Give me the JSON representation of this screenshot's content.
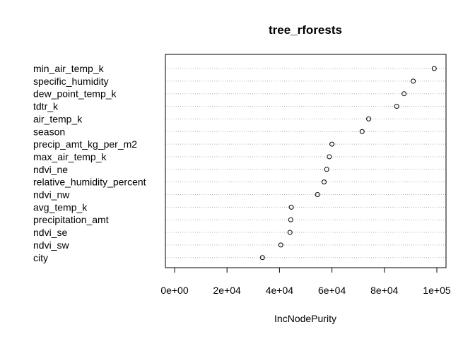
{
  "chart_data": {
    "type": "scatter",
    "title": "tree_rforests",
    "xlabel": "IncNodePurity",
    "ylabel": "",
    "xlim": [
      -3500,
      103500
    ],
    "xticks": [
      0,
      20000,
      40000,
      60000,
      80000,
      100000
    ],
    "xtick_labels": [
      "0e+00",
      "2e+04",
      "4e+04",
      "6e+04",
      "8e+04",
      "1e+05"
    ],
    "grid": "dotted horizontal guide lines per variable",
    "categories": [
      "min_air_temp_k",
      "specific_humidity",
      "dew_point_temp_k",
      "tdtr_k",
      "air_temp_k",
      "season",
      "precip_amt_kg_per_m2",
      "max_air_temp_k",
      "ndvi_ne",
      "relative_humidity_percent",
      "ndvi_nw",
      "avg_temp_k",
      "precipitation_amt",
      "ndvi_se",
      "ndvi_sw",
      "city"
    ],
    "values": [
      99000,
      91000,
      87500,
      84700,
      74000,
      71500,
      60000,
      59000,
      58000,
      57000,
      54500,
      44500,
      44300,
      44000,
      40500,
      33500
    ]
  }
}
